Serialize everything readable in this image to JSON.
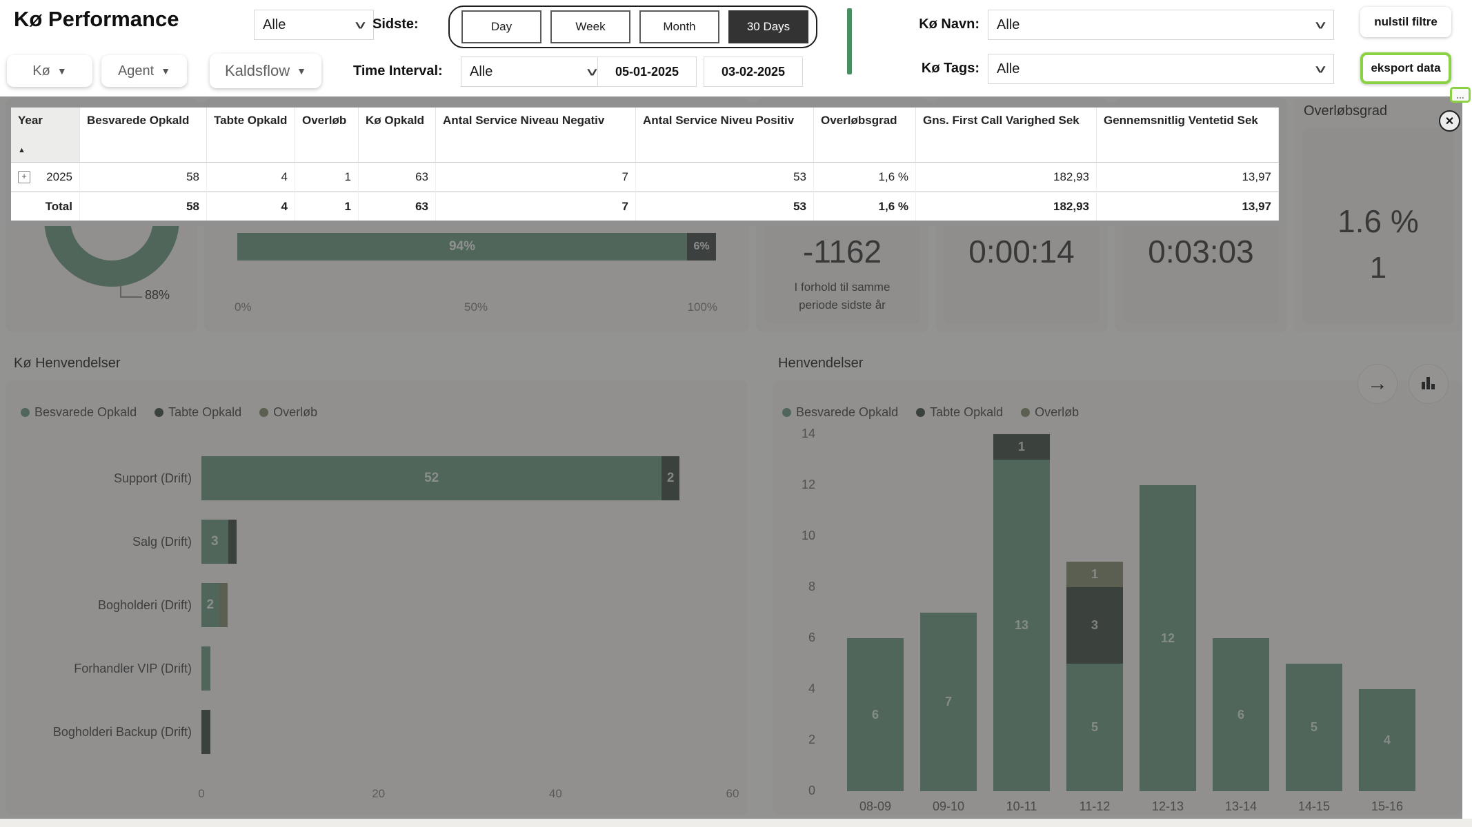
{
  "header": {
    "title": "Kø Performance",
    "top_filter_value": "Alle",
    "sidste_label": "Sidste:",
    "period_options": [
      "Day",
      "Week",
      "Month",
      "30 Days"
    ],
    "selected_period": "30 Days",
    "ko_navn_label": "Kø Navn:",
    "ko_navn_value": "Alle",
    "ko_tags_label": "Kø Tags:",
    "ko_tags_value": "Alle",
    "nulstil_filtre": "nulstil filtre",
    "eksport_data": "eksport data",
    "filters": {
      "ko": "Kø",
      "agent": "Agent",
      "kaldsflow": "Kaldsflow"
    },
    "time_interval_label": "Time Interval:",
    "time_interval_value": "Alle",
    "date_from": "05-01-2025",
    "date_to": "03-02-2025"
  },
  "icons": {
    "caret": "▼",
    "chevron": "∨",
    "close": "✕",
    "more": "...",
    "arrow_right": "→",
    "sort_asc": "▲",
    "expand": "+"
  },
  "table": {
    "columns": [
      "Year",
      "Besvarede Opkald",
      "Tabte Opkald",
      "Overløb",
      "Kø Opkald",
      "Antal Service Niveau Negativ",
      "Antal Service Niveu Positiv",
      "Overløbsgrad",
      "Gns. First Call Varighed Sek",
      "Gennemsnitlig Ventetid Sek"
    ],
    "rows": [
      {
        "label": "2025",
        "expandable": true,
        "values": [
          "58",
          "4",
          "1",
          "63",
          "7",
          "53",
          "1,6 %",
          "182,93",
          "13,97"
        ]
      }
    ],
    "total": {
      "label": "Total",
      "values": [
        "58",
        "4",
        "1",
        "63",
        "7",
        "53",
        "1,6 %",
        "182,93",
        "13,97"
      ]
    }
  },
  "kpis": {
    "answered_pct": "88%",
    "sla": {
      "positive": "94%",
      "negative": "6%",
      "axis": [
        "0%",
        "50%",
        "100%"
      ]
    },
    "change": {
      "value": "-1162",
      "caption_line1": "I forhold til samme",
      "caption_line2": "periode sidste år"
    },
    "wait_time": "0:00:14",
    "handle_time": "0:03:03",
    "overlob": {
      "title": "Overløbsgrad",
      "pct": "1.6 %",
      "count": "1"
    }
  },
  "chart_data": [
    {
      "type": "bar",
      "orientation": "horizontal",
      "stacked": true,
      "title": "Kø Henvendelser",
      "categories": [
        "Support (Drift)",
        "Salg (Drift)",
        "Bogholderi (Drift)",
        "Forhandler VIP (Drift)",
        "Bogholderi Backup (Drift)"
      ],
      "series": [
        {
          "name": "Besvarede Opkald",
          "color": "#7aa28c",
          "values": [
            52,
            3,
            2,
            1,
            0
          ]
        },
        {
          "name": "Tabte Opkald",
          "color": "#546158",
          "values": [
            2,
            1,
            0,
            0,
            1
          ]
        },
        {
          "name": "Overløb",
          "color": "#8f967e",
          "values": [
            0,
            0,
            1,
            0,
            0
          ]
        }
      ],
      "xlim": [
        0,
        60
      ],
      "xticks": [
        0,
        20,
        40,
        60
      ],
      "legend_position": "top",
      "grid": false
    },
    {
      "type": "bar",
      "orientation": "vertical",
      "stacked": true,
      "title": "Henvendelser",
      "categories": [
        "08-09",
        "09-10",
        "10-11",
        "11-12",
        "12-13",
        "13-14",
        "14-15",
        "15-16"
      ],
      "series": [
        {
          "name": "Besvarede Opkald",
          "color": "#7aa28c",
          "values": [
            6,
            7,
            13,
            5,
            12,
            6,
            5,
            4
          ]
        },
        {
          "name": "Tabte Opkald",
          "color": "#546158",
          "values": [
            0,
            0,
            1,
            3,
            0,
            0,
            0,
            0
          ]
        },
        {
          "name": "Overløb",
          "color": "#8f967e",
          "values": [
            0,
            0,
            0,
            1,
            0,
            0,
            0,
            0
          ]
        }
      ],
      "ylim": [
        0,
        14
      ],
      "yticks": [
        0,
        2,
        4,
        6,
        8,
        10,
        12,
        14
      ],
      "legend_position": "top",
      "grid": false
    }
  ],
  "colors": {
    "accent_green": "#8bd243",
    "divider_green": "#478f63",
    "besvarede": "#7aa28c",
    "tabte": "#546158",
    "overlob": "#8f967e",
    "selected_dark": "#333333"
  }
}
